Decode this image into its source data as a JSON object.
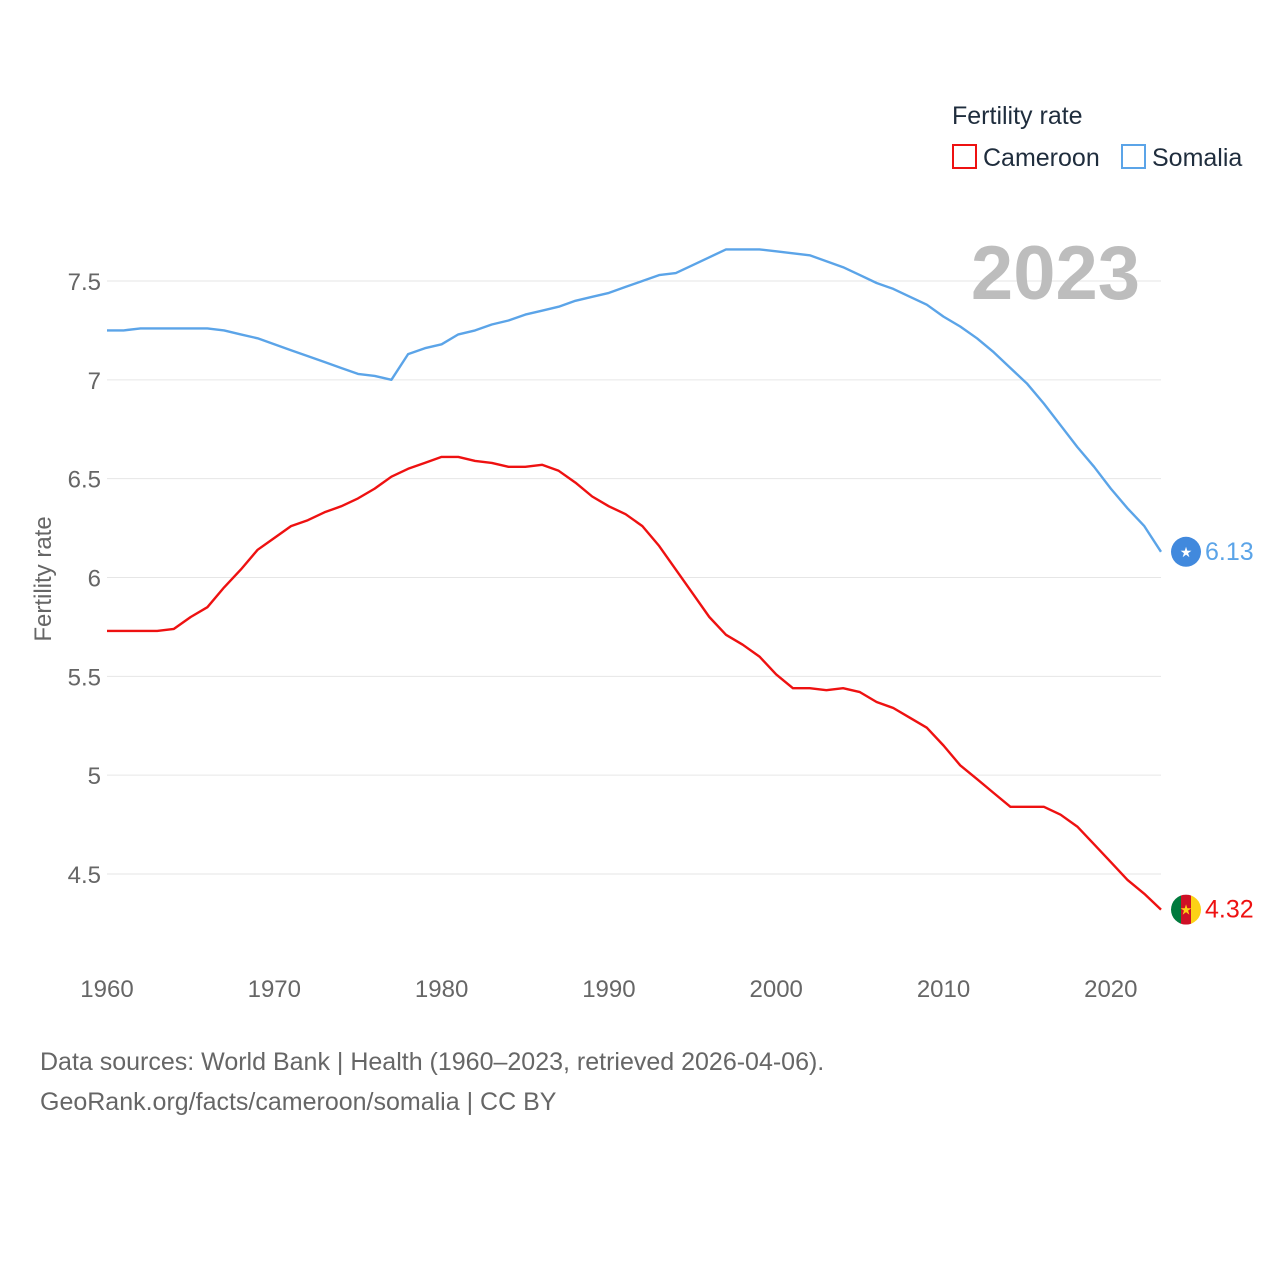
{
  "chart_data": {
    "type": "line",
    "legend_title": "Fertility rate",
    "ylabel": "Fertility rate",
    "current_year": "2023",
    "ylim": [
      4.2,
      7.85
    ],
    "xlim": [
      1960,
      2023
    ],
    "yticks": [
      4.5,
      5,
      5.5,
      6,
      6.5,
      7,
      7.5
    ],
    "ytick_labels": [
      "4.5",
      "5",
      "5.5",
      "6",
      "6.5",
      "7",
      "7.5"
    ],
    "xticks": [
      1960,
      1970,
      1980,
      1990,
      2000,
      2010,
      2020
    ],
    "xtick_labels": [
      "1960",
      "1970",
      "1980",
      "1990",
      "2000",
      "2010",
      "2020"
    ],
    "x": [
      1960,
      1961,
      1962,
      1963,
      1964,
      1965,
      1966,
      1967,
      1968,
      1969,
      1970,
      1971,
      1972,
      1973,
      1974,
      1975,
      1976,
      1977,
      1978,
      1979,
      1980,
      1981,
      1982,
      1983,
      1984,
      1985,
      1986,
      1987,
      1988,
      1989,
      1990,
      1991,
      1992,
      1993,
      1994,
      1995,
      1996,
      1997,
      1998,
      1999,
      2000,
      2001,
      2002,
      2003,
      2004,
      2005,
      2006,
      2007,
      2008,
      2009,
      2010,
      2011,
      2012,
      2013,
      2014,
      2015,
      2016,
      2017,
      2018,
      2019,
      2020,
      2021,
      2022,
      2023
    ],
    "series": [
      {
        "name": "Cameroon",
        "color": "#ee1111",
        "end_label": "4.32",
        "flag_icon": "cameroon-flag-icon",
        "values": [
          5.73,
          5.73,
          5.73,
          5.73,
          5.74,
          5.8,
          5.85,
          5.95,
          6.04,
          6.14,
          6.2,
          6.26,
          6.29,
          6.33,
          6.36,
          6.4,
          6.45,
          6.51,
          6.55,
          6.58,
          6.61,
          6.61,
          6.59,
          6.58,
          6.56,
          6.56,
          6.57,
          6.54,
          6.48,
          6.41,
          6.36,
          6.32,
          6.26,
          6.16,
          6.04,
          5.92,
          5.8,
          5.71,
          5.66,
          5.6,
          5.51,
          5.44,
          5.44,
          5.43,
          5.44,
          5.42,
          5.37,
          5.34,
          5.29,
          5.24,
          5.15,
          5.05,
          4.98,
          4.91,
          4.84,
          4.84,
          4.84,
          4.8,
          4.74,
          4.65,
          4.56,
          4.47,
          4.4,
          4.32
        ]
      },
      {
        "name": "Somalia",
        "color": "#5ba4e8",
        "end_label": "6.13",
        "flag_icon": "somalia-flag-icon",
        "values": [
          7.25,
          7.25,
          7.26,
          7.26,
          7.26,
          7.26,
          7.26,
          7.25,
          7.23,
          7.21,
          7.18,
          7.15,
          7.12,
          7.09,
          7.06,
          7.03,
          7.02,
          7.0,
          7.13,
          7.16,
          7.18,
          7.23,
          7.25,
          7.28,
          7.3,
          7.33,
          7.35,
          7.37,
          7.4,
          7.42,
          7.44,
          7.47,
          7.5,
          7.53,
          7.54,
          7.58,
          7.62,
          7.66,
          7.66,
          7.66,
          7.65,
          7.64,
          7.63,
          7.6,
          7.57,
          7.53,
          7.49,
          7.46,
          7.42,
          7.38,
          7.32,
          7.27,
          7.21,
          7.14,
          7.06,
          6.98,
          6.88,
          6.77,
          6.66,
          6.56,
          6.45,
          6.35,
          6.26,
          6.13
        ]
      }
    ]
  },
  "footer": {
    "line1": "Data sources: World Bank | Health (1960–2023, retrieved 2026-04-06).",
    "line2": "GeoRank.org/facts/cameroon/somalia | CC BY"
  }
}
